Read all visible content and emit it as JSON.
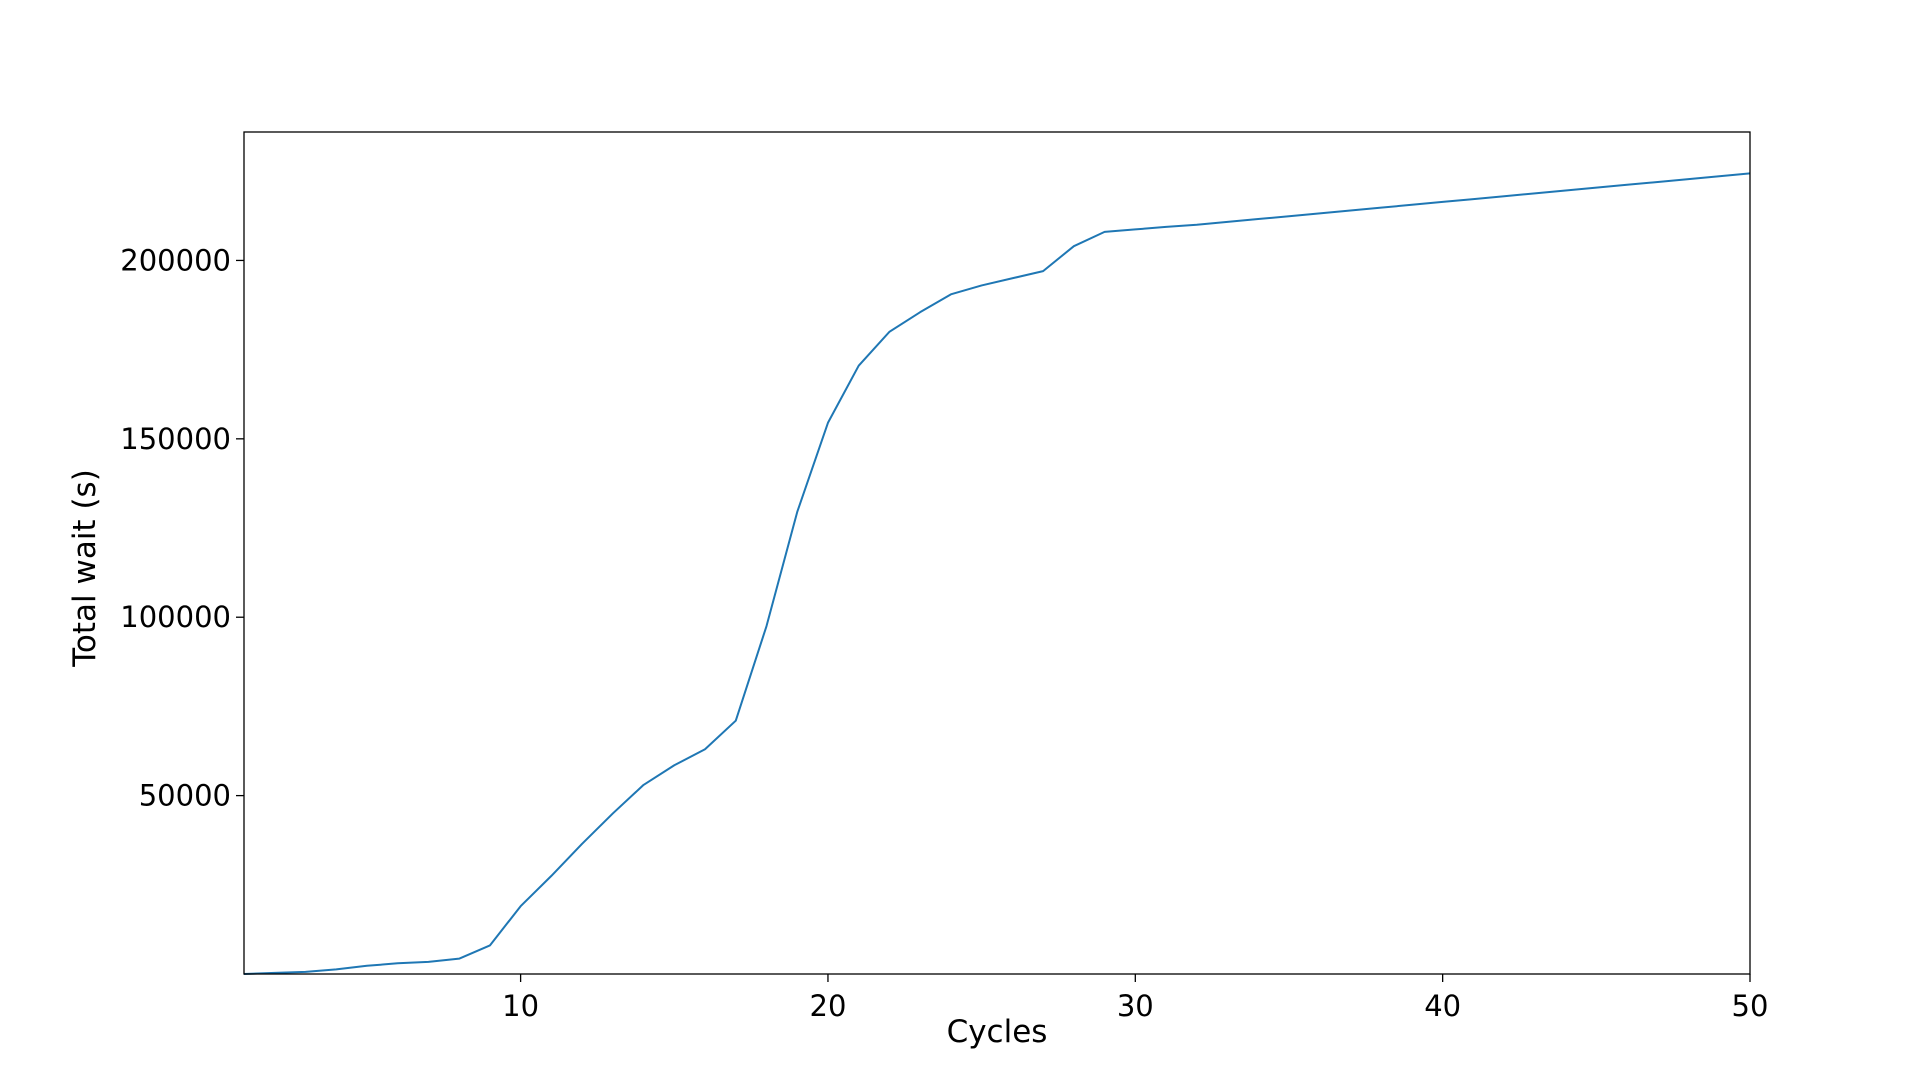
{
  "chart_data": {
    "type": "line",
    "title": "",
    "xlabel": "Cycles",
    "ylabel": "Total wait (s)",
    "xlim": [
      1,
      50
    ],
    "ylim": [
      0,
      236000
    ],
    "x_ticks": [
      10,
      20,
      30,
      40,
      50
    ],
    "y_ticks": [
      50000,
      100000,
      150000,
      200000
    ],
    "grid": false,
    "legend": "none",
    "series": [
      {
        "color": "#1f77b4",
        "x": [
          1,
          2,
          3,
          4,
          5,
          6,
          7,
          8,
          9,
          10,
          11,
          12,
          13,
          14,
          15,
          16,
          17,
          18,
          19,
          20,
          21,
          22,
          23,
          24,
          25,
          26,
          27,
          28,
          29,
          30,
          31,
          32,
          33,
          34,
          35,
          36,
          37,
          38,
          39,
          40,
          41,
          42,
          43,
          44,
          45,
          46,
          47,
          48,
          49,
          50
        ],
        "y": [
          0,
          300,
          600,
          1300,
          2300,
          3000,
          3400,
          4300,
          8000,
          19000,
          27500,
          36500,
          45000,
          53000,
          58500,
          63000,
          71000,
          97500,
          129500,
          154500,
          170500,
          180000,
          185500,
          190500,
          193000,
          195000,
          197000,
          204000,
          208000,
          208700,
          209400,
          210000,
          210800,
          211600,
          212400,
          213200,
          214000,
          214800,
          215600,
          216400,
          217200,
          218000,
          218800,
          219600,
          220400,
          221200,
          222000,
          222800,
          223600,
          224400
        ]
      }
    ]
  }
}
